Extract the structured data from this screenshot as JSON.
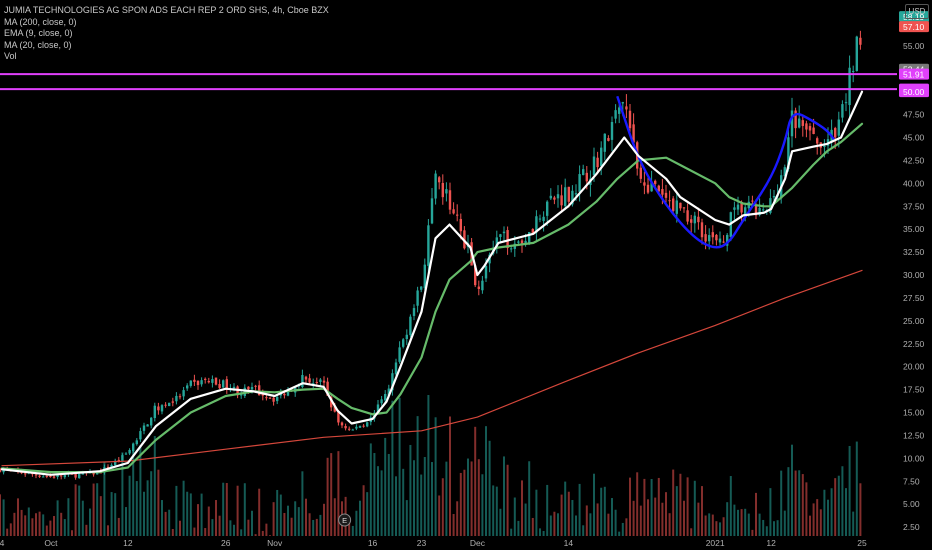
{
  "header": {
    "title": "JUMIA TECHNOLOGIES AG SPON ADS EACH REP 2 ORD SHS, 4h, Cboe BZX",
    "indicators": [
      "MA (200, close, 0)",
      "EMA (9, close, 0)",
      "MA (20, close, 0)",
      "Vol"
    ],
    "currency": "USD"
  },
  "colors": {
    "background": "#000000",
    "up": "#26a69a",
    "down": "#ef5350",
    "ema9": "#ffffff",
    "ma20": "#66bb6a",
    "ma200": "#d4473b",
    "resistance": "#e040fb",
    "pattern": "#1a1aff"
  },
  "chart_data": {
    "type": "candlestick",
    "ylim": [
      0,
      60
    ],
    "y_ticks": [
      "2.50",
      "5.00",
      "7.50",
      "10.00",
      "12.50",
      "15.00",
      "17.50",
      "20.00",
      "22.50",
      "25.00",
      "27.50",
      "30.00",
      "32.50",
      "35.00",
      "37.50",
      "40.00",
      "42.50",
      "45.00",
      "47.50",
      "50.00",
      "52.50",
      "55.00",
      "57.50"
    ],
    "x_ticks": [
      {
        "label": "4",
        "date": "2020-09-24"
      },
      {
        "label": "Oct",
        "date": "2020-10-01"
      },
      {
        "label": "12",
        "date": "2020-10-12"
      },
      {
        "label": "26",
        "date": "2020-10-26"
      },
      {
        "label": "Nov",
        "date": "2020-11-02"
      },
      {
        "label": "16",
        "date": "2020-11-16"
      },
      {
        "label": "23",
        "date": "2020-11-23"
      },
      {
        "label": "Dec",
        "date": "2020-12-01"
      },
      {
        "label": "14",
        "date": "2020-12-14"
      },
      {
        "label": "2021",
        "date": "2021-01-04"
      },
      {
        "label": "12",
        "date": "2021-01-12"
      },
      {
        "label": "25",
        "date": "2021-01-25"
      }
    ],
    "close_path": [
      [
        "2020-09-24",
        8.8
      ],
      [
        "2020-09-28",
        8.3
      ],
      [
        "2020-10-01",
        8.0
      ],
      [
        "2020-10-05",
        8.2
      ],
      [
        "2020-10-08",
        8.5
      ],
      [
        "2020-10-12",
        10.5
      ],
      [
        "2020-10-14",
        13.0
      ],
      [
        "2020-10-16",
        15.5
      ],
      [
        "2020-10-19",
        16.5
      ],
      [
        "2020-10-21",
        18.0
      ],
      [
        "2020-10-23",
        18.5
      ],
      [
        "2020-10-26",
        18.0
      ],
      [
        "2020-10-28",
        17.2
      ],
      [
        "2020-10-30",
        17.5
      ],
      [
        "2020-11-02",
        16.5
      ],
      [
        "2020-11-04",
        17.5
      ],
      [
        "2020-11-06",
        18.8
      ],
      [
        "2020-11-09",
        18.0
      ],
      [
        "2020-11-11",
        14.0
      ],
      [
        "2020-11-13",
        13.0
      ],
      [
        "2020-11-16",
        14.5
      ],
      [
        "2020-11-18",
        17.0
      ],
      [
        "2020-11-20",
        22.0
      ],
      [
        "2020-11-23",
        29.0
      ],
      [
        "2020-11-24",
        35.0
      ],
      [
        "2020-11-25",
        40.0
      ],
      [
        "2020-11-27",
        38.0
      ],
      [
        "2020-11-30",
        32.0
      ],
      [
        "2020-12-01",
        28.5
      ],
      [
        "2020-12-02",
        30.5
      ],
      [
        "2020-12-04",
        34.0
      ],
      [
        "2020-12-07",
        33.5
      ],
      [
        "2020-12-09",
        35.5
      ],
      [
        "2020-12-11",
        38.0
      ],
      [
        "2020-12-14",
        39.0
      ],
      [
        "2020-12-16",
        40.5
      ],
      [
        "2020-12-18",
        42.5
      ],
      [
        "2020-12-21",
        47.5
      ],
      [
        "2020-12-22",
        49.0
      ],
      [
        "2020-12-23",
        45.0
      ],
      [
        "2020-12-24",
        41.0
      ],
      [
        "2020-12-28",
        38.0
      ],
      [
        "2020-12-30",
        37.5
      ],
      [
        "2021-01-04",
        33.5
      ],
      [
        "2021-01-05",
        33.0
      ],
      [
        "2021-01-06",
        36.0
      ],
      [
        "2021-01-08",
        37.5
      ],
      [
        "2021-01-11",
        36.5
      ],
      [
        "2021-01-12",
        38.0
      ],
      [
        "2021-01-14",
        42.0
      ],
      [
        "2021-01-15",
        47.0
      ],
      [
        "2021-01-18",
        45.0
      ],
      [
        "2021-01-19",
        43.5
      ],
      [
        "2021-01-20",
        45.0
      ],
      [
        "2021-01-21",
        44.5
      ],
      [
        "2021-01-22",
        47.0
      ],
      [
        "2021-01-25",
        57.5
      ]
    ],
    "ema9": [
      [
        "2020-09-24",
        8.8
      ],
      [
        "2020-10-01",
        8.2
      ],
      [
        "2020-10-08",
        8.6
      ],
      [
        "2020-10-12",
        9.5
      ],
      [
        "2020-10-16",
        13.5
      ],
      [
        "2020-10-21",
        16.5
      ],
      [
        "2020-10-26",
        17.6
      ],
      [
        "2020-10-30",
        17.3
      ],
      [
        "2020-11-02",
        16.8
      ],
      [
        "2020-11-06",
        18.2
      ],
      [
        "2020-11-09",
        17.8
      ],
      [
        "2020-11-11",
        15.2
      ],
      [
        "2020-11-13",
        13.8
      ],
      [
        "2020-11-16",
        14.3
      ],
      [
        "2020-11-18",
        16.2
      ],
      [
        "2020-11-20",
        20.0
      ],
      [
        "2020-11-23",
        26.0
      ],
      [
        "2020-11-25",
        34.0
      ],
      [
        "2020-11-27",
        35.5
      ],
      [
        "2020-11-30",
        33.0
      ],
      [
        "2020-12-01",
        30.0
      ],
      [
        "2020-12-02",
        31.0
      ],
      [
        "2020-12-04",
        33.5
      ],
      [
        "2020-12-09",
        34.5
      ],
      [
        "2020-12-14",
        37.5
      ],
      [
        "2020-12-18",
        41.0
      ],
      [
        "2020-12-21",
        44.0
      ],
      [
        "2020-12-22",
        45.0
      ],
      [
        "2020-12-24",
        43.0
      ],
      [
        "2020-12-28",
        40.5
      ],
      [
        "2020-12-30",
        38.5
      ],
      [
        "2021-01-04",
        36.0
      ],
      [
        "2021-01-06",
        35.5
      ],
      [
        "2021-01-08",
        36.5
      ],
      [
        "2021-01-11",
        36.8
      ],
      [
        "2021-01-12",
        37.2
      ],
      [
        "2021-01-14",
        40.5
      ],
      [
        "2021-01-15",
        43.5
      ],
      [
        "2021-01-18",
        44.0
      ],
      [
        "2021-01-20",
        44.3
      ],
      [
        "2021-01-22",
        45.0
      ],
      [
        "2021-01-25",
        50.0
      ]
    ],
    "ma20": [
      [
        "2020-09-24",
        8.9
      ],
      [
        "2020-10-01",
        8.5
      ],
      [
        "2020-10-08",
        8.5
      ],
      [
        "2020-10-12",
        9.0
      ],
      [
        "2020-10-16",
        12.0
      ],
      [
        "2020-10-21",
        15.0
      ],
      [
        "2020-10-26",
        16.8
      ],
      [
        "2020-10-30",
        17.3
      ],
      [
        "2020-11-02",
        17.2
      ],
      [
        "2020-11-06",
        17.5
      ],
      [
        "2020-11-09",
        17.6
      ],
      [
        "2020-11-11",
        16.5
      ],
      [
        "2020-11-13",
        15.5
      ],
      [
        "2020-11-16",
        14.8
      ],
      [
        "2020-11-18",
        15.0
      ],
      [
        "2020-11-20",
        17.0
      ],
      [
        "2020-11-23",
        21.0
      ],
      [
        "2020-11-25",
        26.0
      ],
      [
        "2020-11-27",
        29.5
      ],
      [
        "2020-11-30",
        31.5
      ],
      [
        "2020-12-01",
        32.5
      ],
      [
        "2020-12-04",
        33.0
      ],
      [
        "2020-12-09",
        33.5
      ],
      [
        "2020-12-14",
        35.5
      ],
      [
        "2020-12-18",
        38.0
      ],
      [
        "2020-12-21",
        40.5
      ],
      [
        "2020-12-24",
        42.5
      ],
      [
        "2020-12-28",
        42.8
      ],
      [
        "2020-12-30",
        42.0
      ],
      [
        "2021-01-04",
        40.0
      ],
      [
        "2021-01-06",
        38.5
      ],
      [
        "2021-01-08",
        37.8
      ],
      [
        "2021-01-11",
        37.5
      ],
      [
        "2021-01-12",
        37.5
      ],
      [
        "2021-01-15",
        39.5
      ],
      [
        "2021-01-18",
        42.0
      ],
      [
        "2021-01-20",
        43.5
      ],
      [
        "2021-01-22",
        44.5
      ],
      [
        "2021-01-25",
        46.5
      ]
    ],
    "ma200": [
      [
        "2020-09-24",
        9.2
      ],
      [
        "2020-10-12",
        9.7
      ],
      [
        "2020-10-26",
        11.0
      ],
      [
        "2020-11-09",
        12.3
      ],
      [
        "2020-11-23",
        13.0
      ],
      [
        "2020-12-01",
        14.5
      ],
      [
        "2020-12-14",
        18.5
      ],
      [
        "2020-12-24",
        21.5
      ],
      [
        "2021-01-04",
        24.5
      ],
      [
        "2021-01-14",
        27.5
      ],
      [
        "2021-01-25",
        30.5
      ]
    ],
    "resistance_levels": [
      51.91,
      50.28
    ],
    "price_labels": [
      {
        "value": 58.19,
        "text": "58.19",
        "kind": "up"
      },
      {
        "value": 57.1,
        "text": "57.10",
        "kind": "down"
      },
      {
        "value": 52.44,
        "text": "52.44",
        "kind": "gray"
      },
      {
        "value": 51.91,
        "text": "51.91",
        "kind": "level"
      },
      {
        "value": 50.28,
        "text": "50.28",
        "kind": "level"
      },
      {
        "value": 50.0,
        "text": "50.00",
        "kind": "level"
      }
    ],
    "pattern": {
      "type": "cup",
      "points": [
        [
          "2020-12-21",
          49.5
        ],
        [
          "2020-12-24",
          42.5
        ],
        [
          "2020-12-28",
          37.5
        ],
        [
          "2021-01-01",
          34.0
        ],
        [
          "2021-01-04",
          32.8
        ],
        [
          "2021-01-06",
          33.5
        ],
        [
          "2021-01-08",
          36.0
        ],
        [
          "2021-01-12",
          40.5
        ],
        [
          "2021-01-14",
          44.5
        ],
        [
          "2021-01-15",
          48.0
        ],
        [
          "2021-01-18",
          46.8
        ],
        [
          "2021-01-20",
          45.8
        ],
        [
          "2021-01-21",
          44.8
        ]
      ]
    },
    "events": [
      {
        "date": "2020-11-12",
        "label": "E"
      }
    ]
  }
}
